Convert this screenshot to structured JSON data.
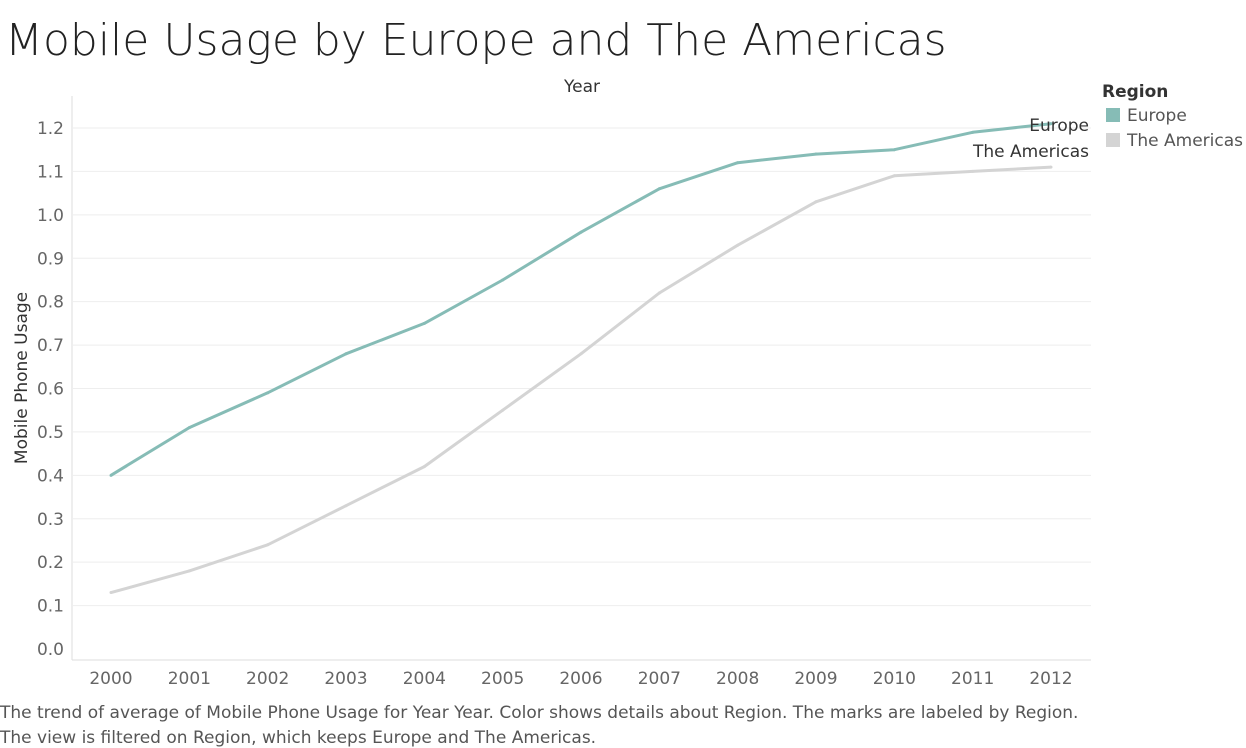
{
  "chart_data": {
    "type": "line",
    "title": "Mobile Usage by  Europe and The Americas",
    "xlabel": "Year",
    "ylabel": "Mobile Phone Usage",
    "x": [
      "2000",
      "2001",
      "2002",
      "2003",
      "2004",
      "2005",
      "2006",
      "2007",
      "2008",
      "2009",
      "2010",
      "2011",
      "2012"
    ],
    "ylim": [
      0,
      1.2
    ],
    "y_ticks": [
      "0.0",
      "0.1",
      "0.2",
      "0.3",
      "0.4",
      "0.5",
      "0.6",
      "0.7",
      "0.8",
      "0.9",
      "1.0",
      "1.1",
      "1.2"
    ],
    "grid": true,
    "series": [
      {
        "name": "Europe",
        "color": "#86bcb6",
        "values": [
          0.4,
          0.51,
          0.59,
          0.68,
          0.75,
          0.85,
          0.96,
          1.06,
          1.12,
          1.14,
          1.15,
          1.19,
          1.21
        ]
      },
      {
        "name": "The Americas",
        "color": "#d4d4d4",
        "values": [
          0.13,
          0.18,
          0.24,
          0.33,
          0.42,
          0.55,
          0.68,
          0.82,
          0.93,
          1.03,
          1.09,
          1.1,
          1.11
        ]
      }
    ],
    "legend": {
      "title": "Region",
      "position": "top-right",
      "entries": [
        "Europe",
        "The Americas"
      ]
    },
    "mark_labels": [
      "Europe",
      "The Americas"
    ]
  },
  "caption": {
    "line1": "The trend of average of Mobile Phone Usage for Year Year.  Color shows details about Region.  The marks are labeled by Region.",
    "line2": "The view is filtered on Region, which keeps Europe and The Americas."
  }
}
